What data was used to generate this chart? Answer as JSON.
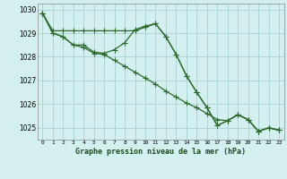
{
  "title": "Graphe pression niveau de la mer (hPa)",
  "background_color": "#d4efef",
  "grid_color": "#b0d4d4",
  "line_color": "#2d6a2d",
  "x_values": [
    0,
    1,
    2,
    3,
    4,
    5,
    6,
    7,
    8,
    9,
    10,
    11,
    12,
    13,
    14,
    15,
    16,
    17,
    18,
    19,
    20,
    21,
    22,
    23
  ],
  "series1": [
    1029.85,
    1029.1,
    1029.1,
    1029.1,
    1029.1,
    1029.1,
    1029.1,
    1029.1,
    1029.1,
    1029.1,
    1029.25,
    1029.4,
    1028.85,
    1028.1,
    1027.2,
    1026.5,
    1025.85,
    1025.1,
    1025.3,
    1025.55,
    1025.35,
    1024.85,
    1025.0,
    1024.9
  ],
  "series2": [
    1029.85,
    1029.0,
    1028.85,
    1028.5,
    1028.5,
    1028.2,
    1028.15,
    1028.3,
    1028.6,
    1029.15,
    1029.3,
    1029.4,
    1028.85,
    1028.1,
    1027.2,
    1026.5,
    1025.85,
    1025.1,
    1025.3,
    1025.55,
    1025.35,
    1024.85,
    1025.0,
    1024.9
  ],
  "series3": [
    1029.85,
    1029.0,
    1028.85,
    1028.5,
    1028.4,
    1028.15,
    1028.1,
    1027.85,
    1027.6,
    1027.35,
    1027.1,
    1026.85,
    1026.55,
    1026.3,
    1026.05,
    1025.85,
    1025.6,
    1025.35,
    1025.3,
    1025.55,
    1025.35,
    1024.85,
    1025.0,
    1024.9
  ],
  "ylim": [
    1024.5,
    1030.25
  ],
  "yticks": [
    1025,
    1026,
    1027,
    1028,
    1029,
    1030
  ],
  "xlim": [
    -0.5,
    23.5
  ],
  "xticks": [
    0,
    1,
    2,
    3,
    4,
    5,
    6,
    7,
    8,
    9,
    10,
    11,
    12,
    13,
    14,
    15,
    16,
    17,
    18,
    19,
    20,
    21,
    22,
    23
  ]
}
